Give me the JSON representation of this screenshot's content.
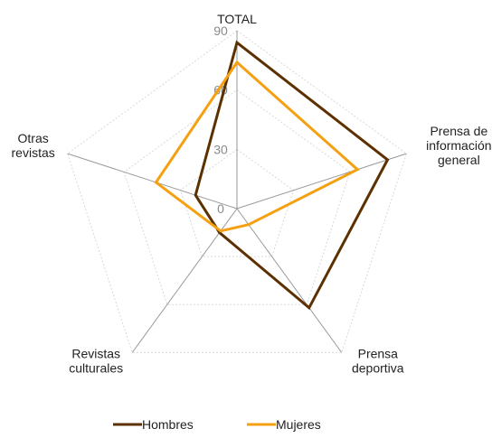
{
  "chart_data": {
    "type": "radar",
    "axes": [
      "TOTAL",
      "Prensa de información general",
      "Prensa deportiva",
      "Revistas culturales",
      "Otras revistas"
    ],
    "axis_label_lines": [
      [
        "TOTAL"
      ],
      [
        "Prensa de",
        "información",
        "general"
      ],
      [
        "Prensa",
        "deportiva"
      ],
      [
        "Revistas",
        "culturales"
      ],
      [
        "Otras",
        "revistas"
      ]
    ],
    "range": [
      0,
      90
    ],
    "ticks": [
      0,
      30,
      60,
      90
    ],
    "tick_labels": [
      "0",
      "30",
      "60",
      "90"
    ],
    "grid": true,
    "legend_position": "bottom",
    "series": [
      {
        "name": "Hombres",
        "values": [
          84,
          80,
          62,
          15,
          22
        ],
        "color": "#5c3000"
      },
      {
        "name": "Mujeres",
        "values": [
          74,
          64,
          10,
          14,
          43
        ],
        "color": "#f5a010"
      }
    ]
  }
}
